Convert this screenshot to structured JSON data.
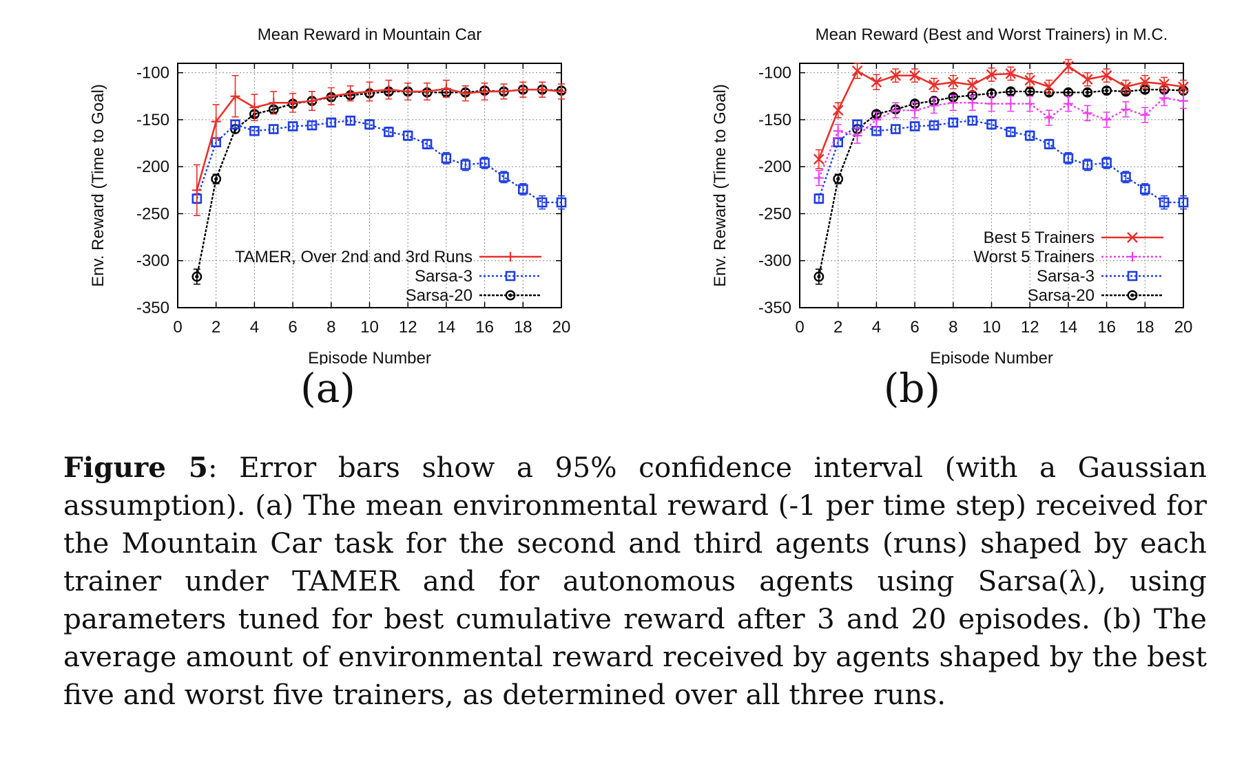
{
  "chart_data": [
    {
      "type": "line",
      "title": "Mean Reward in Mountain Car",
      "xlabel": "Episode Number",
      "ylabel": "Env. Reward (Time to Goal)",
      "xlim": [
        0,
        20
      ],
      "ylim": [
        -350,
        -90
      ],
      "xticks": [
        0,
        2,
        4,
        6,
        8,
        10,
        12,
        14,
        16,
        18,
        20
      ],
      "yticks": [
        -100,
        -150,
        -200,
        -250,
        -300,
        -350
      ],
      "grid": true,
      "legend": "bottom-right",
      "series": [
        {
          "name": "TAMER, Over 2nd and 3rd Runs",
          "color": "#e8302a",
          "marker": "plus",
          "line": "solid",
          "x": [
            1,
            2,
            3,
            4,
            5,
            6,
            7,
            8,
            9,
            10,
            11,
            12,
            13,
            14,
            15,
            16,
            17,
            18,
            19,
            20
          ],
          "y": [
            -225,
            -152,
            -125,
            -137,
            -132,
            -132,
            -130,
            -125,
            -122,
            -120,
            -118,
            -120,
            -120,
            -117,
            -122,
            -120,
            -120,
            -118,
            -118,
            -120
          ],
          "err": [
            27,
            18,
            22,
            14,
            12,
            10,
            10,
            9,
            8,
            10,
            10,
            9,
            9,
            9,
            8,
            9,
            8,
            8,
            8,
            8
          ]
        },
        {
          "name": "Sarsa-3",
          "color": "#1f3fe0",
          "marker": "square",
          "line": "dotted",
          "x": [
            1,
            2,
            3,
            4,
            5,
            6,
            7,
            8,
            9,
            10,
            11,
            12,
            13,
            14,
            15,
            16,
            17,
            18,
            19,
            20
          ],
          "y": [
            -234,
            -174,
            -155,
            -162,
            -160,
            -157,
            -156,
            -153,
            -151,
            -155,
            -163,
            -167,
            -176,
            -191,
            -198,
            -196,
            -211,
            -224,
            -238,
            -238
          ],
          "err": [
            5,
            4,
            4,
            4,
            4,
            4,
            4,
            4,
            4,
            5,
            5,
            5,
            5,
            6,
            6,
            6,
            6,
            6,
            7,
            7
          ]
        },
        {
          "name": "Sarsa-20",
          "color": "#000000",
          "marker": "circle",
          "line": "dashed",
          "x": [
            1,
            2,
            3,
            4,
            5,
            6,
            7,
            8,
            9,
            10,
            11,
            12,
            13,
            14,
            15,
            16,
            17,
            18,
            19,
            20
          ],
          "y": [
            -317,
            -213,
            -160,
            -144,
            -139,
            -133,
            -130,
            -126,
            -124,
            -122,
            -120,
            -120,
            -121,
            -121,
            -121,
            -119,
            -120,
            -118,
            -118,
            -119
          ],
          "err": [
            8,
            5,
            4,
            3,
            3,
            3,
            3,
            3,
            3,
            3,
            3,
            3,
            3,
            3,
            3,
            3,
            3,
            3,
            3,
            3
          ]
        }
      ]
    },
    {
      "type": "line",
      "title": "Mean Reward (Best and Worst Trainers) in M.C.",
      "xlabel": "Episode Number",
      "ylabel": "Env. Reward (Time to Goal)",
      "xlim": [
        0,
        20
      ],
      "ylim": [
        -350,
        -90
      ],
      "xticks": [
        0,
        2,
        4,
        6,
        8,
        10,
        12,
        14,
        16,
        18,
        20
      ],
      "yticks": [
        -100,
        -150,
        -200,
        -250,
        -300,
        -350
      ],
      "grid": true,
      "legend": "bottom-right",
      "series": [
        {
          "name": "Best 5 Trainers",
          "color": "#e8302a",
          "marker": "cross",
          "line": "solid",
          "x": [
            1,
            2,
            3,
            4,
            5,
            6,
            7,
            8,
            9,
            10,
            11,
            12,
            13,
            14,
            15,
            16,
            17,
            18,
            19,
            20
          ],
          "y": [
            -192,
            -140,
            -98,
            -110,
            -103,
            -103,
            -113,
            -110,
            -113,
            -102,
            -101,
            -108,
            -115,
            -93,
            -107,
            -103,
            -115,
            -110,
            -112,
            -115
          ],
          "err": [
            10,
            8,
            8,
            8,
            7,
            7,
            7,
            7,
            7,
            7,
            7,
            7,
            7,
            7,
            7,
            7,
            7,
            7,
            7,
            7
          ]
        },
        {
          "name": "Worst 5 Trainers",
          "color": "#ee3cee",
          "marker": "plus",
          "line": "dotted",
          "x": [
            1,
            2,
            3,
            4,
            5,
            6,
            7,
            8,
            9,
            10,
            11,
            12,
            13,
            14,
            15,
            16,
            17,
            18,
            19,
            20
          ],
          "y": [
            -212,
            -162,
            -167,
            -150,
            -140,
            -140,
            -135,
            -132,
            -132,
            -133,
            -133,
            -133,
            -148,
            -133,
            -143,
            -150,
            -139,
            -145,
            -127,
            -130
          ],
          "err": [
            8,
            7,
            8,
            8,
            8,
            8,
            8,
            8,
            8,
            8,
            8,
            8,
            8,
            8,
            8,
            8,
            8,
            8,
            8,
            8
          ]
        },
        {
          "name": "Sarsa-3",
          "color": "#1f3fe0",
          "marker": "square",
          "line": "dotted",
          "x": [
            1,
            2,
            3,
            4,
            5,
            6,
            7,
            8,
            9,
            10,
            11,
            12,
            13,
            14,
            15,
            16,
            17,
            18,
            19,
            20
          ],
          "y": [
            -234,
            -174,
            -155,
            -162,
            -160,
            -157,
            -156,
            -153,
            -151,
            -155,
            -163,
            -167,
            -176,
            -191,
            -198,
            -196,
            -211,
            -224,
            -238,
            -238
          ],
          "err": [
            5,
            4,
            4,
            4,
            4,
            4,
            4,
            4,
            4,
            5,
            5,
            5,
            5,
            6,
            6,
            6,
            6,
            6,
            7,
            7
          ]
        },
        {
          "name": "Sarsa-20",
          "color": "#000000",
          "marker": "circle",
          "line": "dashed",
          "x": [
            1,
            2,
            3,
            4,
            5,
            6,
            7,
            8,
            9,
            10,
            11,
            12,
            13,
            14,
            15,
            16,
            17,
            18,
            19,
            20
          ],
          "y": [
            -317,
            -213,
            -160,
            -144,
            -139,
            -133,
            -130,
            -126,
            -124,
            -122,
            -120,
            -120,
            -121,
            -121,
            -121,
            -119,
            -120,
            -118,
            -118,
            -119
          ],
          "err": [
            8,
            5,
            4,
            3,
            3,
            3,
            3,
            3,
            3,
            3,
            3,
            3,
            3,
            3,
            3,
            3,
            3,
            3,
            3,
            3
          ]
        }
      ]
    }
  ],
  "panels": {
    "a": "(a)",
    "b": "(b)"
  },
  "caption": {
    "label": "Figure 5",
    "p1": ": Error bars show a 95% confidence interval (with a Gaussian assumption). (a) The mean environmental reward (-1 per time step) received for the Mountain Car task for the second and third agents (runs) shaped by each trainer under ",
    "tamer": "TAMER",
    "p2": " and for autonomous agents using Sarsa(λ), using parameters tuned for best cumulative reward after 3 and 20 episodes. (b) The average amount of environmental reward received by agents shaped by the best five and worst five trainers, as determined over all three runs."
  }
}
